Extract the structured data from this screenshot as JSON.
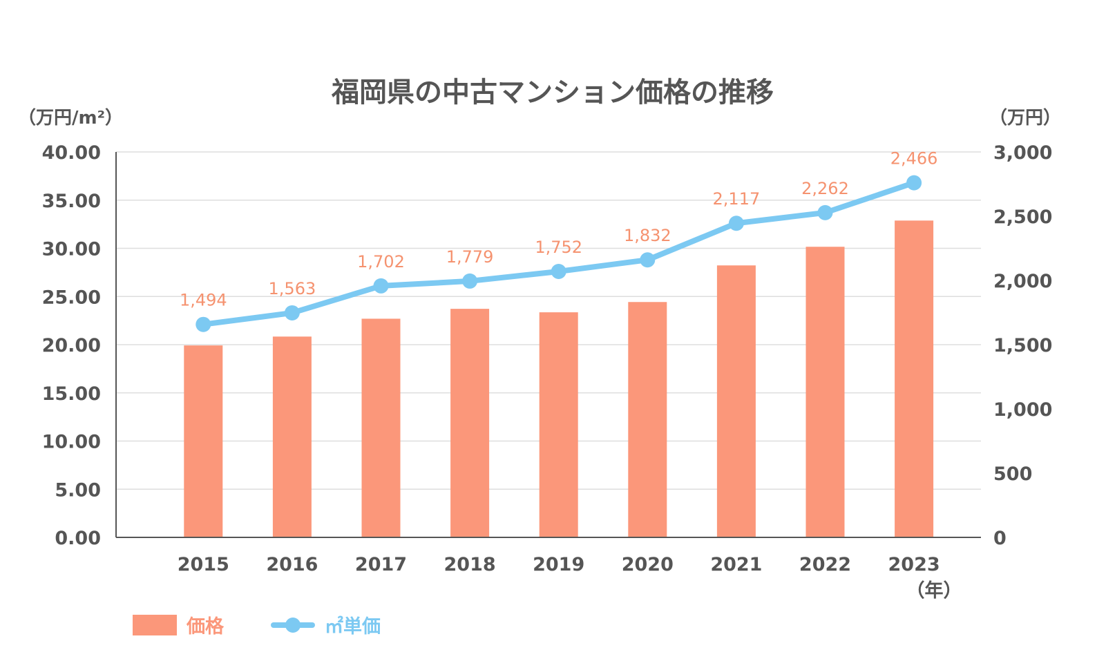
{
  "chart_data": {
    "type": "bar",
    "title": "福岡県の中古マンション価格の推移",
    "left_unit": "（万円/m²）",
    "right_unit": "（万円）",
    "x_unit": "（年）",
    "categories": [
      "2015",
      "2016",
      "2017",
      "2018",
      "2019",
      "2020",
      "2021",
      "2022",
      "2023"
    ],
    "left_axis": {
      "range": [
        0,
        40
      ],
      "ticks": [
        "0.00",
        "5.00",
        "10.00",
        "15.00",
        "20.00",
        "25.00",
        "30.00",
        "35.00",
        "40.00"
      ]
    },
    "right_axis": {
      "range": [
        0,
        3000
      ],
      "ticks": [
        "0",
        "500",
        "1,000",
        "1,500",
        "2,000",
        "2,500",
        "3,000"
      ]
    },
    "grid": true,
    "series": [
      {
        "name": "価格",
        "type": "bar",
        "axis": "right",
        "color": "#fb977a",
        "values": [
          1494,
          1563,
          1702,
          1779,
          1752,
          1832,
          2117,
          2262,
          2466
        ],
        "labels": [
          "1,494",
          "1,563",
          "1,702",
          "1,779",
          "1,752",
          "1,832",
          "2,117",
          "2,262",
          "2,466"
        ]
      },
      {
        "name": "㎡単価",
        "type": "line",
        "axis": "left",
        "color": "#7cc9f2",
        "values": [
          22.1,
          23.3,
          26.1,
          26.6,
          27.6,
          28.8,
          32.6,
          33.7,
          36.8
        ]
      }
    ],
    "legend_position": "bottom-left"
  }
}
